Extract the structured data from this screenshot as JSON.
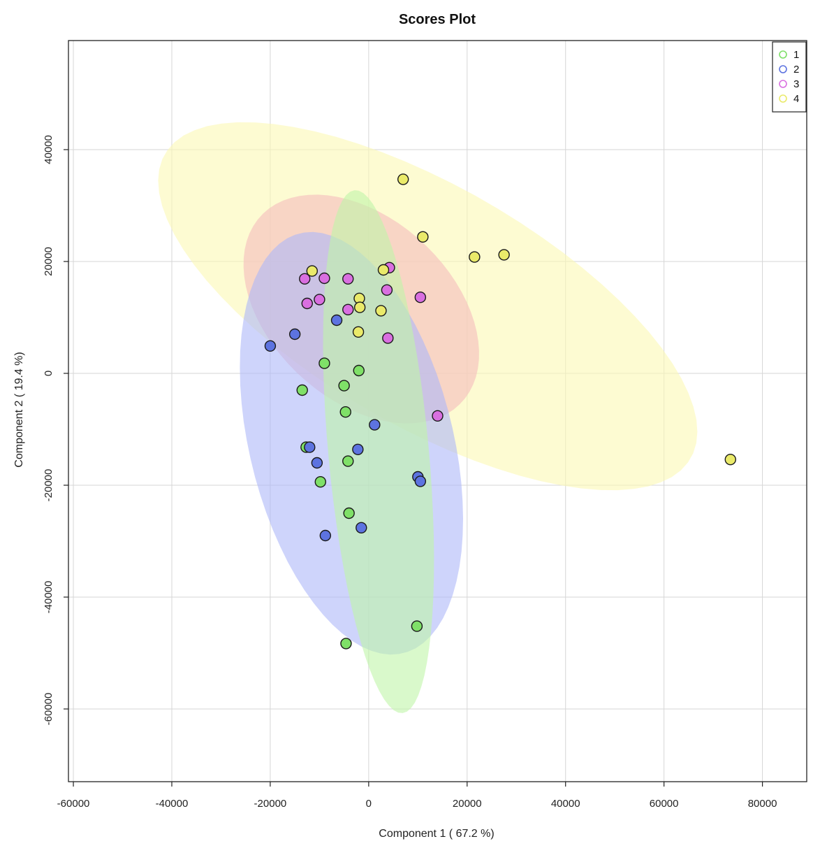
{
  "chart_data": {
    "type": "scatter",
    "title": "Scores Plot",
    "xlabel": "Component 1 ( 67.2 %)",
    "ylabel": "Component 2 ( 19.4 %)",
    "xlim": [
      -61000,
      89000
    ],
    "ylim": [
      -73000,
      59500
    ],
    "x_ticks": [
      -60000,
      -40000,
      -20000,
      0,
      20000,
      40000,
      60000,
      80000
    ],
    "x_tick_labels": [
      "-60000",
      "-40000",
      "-20000",
      "0",
      "20000",
      "40000",
      "60000",
      "80000"
    ],
    "y_ticks": [
      -60000,
      -40000,
      -20000,
      0,
      20000,
      40000
    ],
    "y_tick_labels": [
      "-60000",
      "-40000",
      "-20000",
      "0",
      "20000",
      "40000"
    ],
    "grid": true,
    "legend_position": "top-right",
    "legend": [
      "1",
      "2",
      "3",
      "4"
    ],
    "series": [
      {
        "name": "1",
        "color": "#7fe068",
        "ellipse_fill": "#bff5a8",
        "points": [
          [
            -9000,
            1800
          ],
          [
            -2000,
            500
          ],
          [
            -13500,
            -3000
          ],
          [
            -5000,
            -2200
          ],
          [
            -4700,
            -6900
          ],
          [
            -12700,
            -13200
          ],
          [
            -4200,
            -15700
          ],
          [
            -9800,
            -19400
          ],
          [
            -4000,
            -25000
          ],
          [
            9800,
            -45200
          ],
          [
            -4600,
            -48300
          ]
        ],
        "ellipse": {
          "cx": 2000,
          "cy": -14000,
          "rx": 47000,
          "ry": 10200,
          "angle": -84
        }
      },
      {
        "name": "2",
        "color": "#5d73e0",
        "ellipse_fill": "#aeb8f8",
        "points": [
          [
            -20000,
            4900
          ],
          [
            -15000,
            7000
          ],
          [
            -6500,
            9500
          ],
          [
            1200,
            -9200
          ],
          [
            -12000,
            -13200
          ],
          [
            -2200,
            -13600
          ],
          [
            -10500,
            -16000
          ],
          [
            10000,
            -18500
          ],
          [
            10500,
            -19300
          ],
          [
            -1500,
            -27600
          ],
          [
            -8800,
            -29000
          ]
        ],
        "ellipse": {
          "cx": -3500,
          "cy": -12500,
          "rx": 39000,
          "ry": 20500,
          "angle": -73
        }
      },
      {
        "name": "3",
        "color": "#d96fe0",
        "ellipse_fill": "#f5bcbc",
        "points": [
          [
            -13000,
            16900
          ],
          [
            -9000,
            17000
          ],
          [
            -4200,
            16900
          ],
          [
            4200,
            18900
          ],
          [
            3700,
            14900
          ],
          [
            -12500,
            12500
          ],
          [
            -10000,
            13200
          ],
          [
            -4200,
            11400
          ],
          [
            10500,
            13600
          ],
          [
            3900,
            6300
          ],
          [
            14000,
            -7600
          ]
        ],
        "ellipse": {
          "cx": -1500,
          "cy": 11500,
          "rx": 26500,
          "ry": 17000,
          "angle": -34
        }
      },
      {
        "name": "4",
        "color": "#eaea6a",
        "ellipse_fill": "#fbf9b4",
        "points": [
          [
            7000,
            34700
          ],
          [
            11000,
            24400
          ],
          [
            21500,
            20800
          ],
          [
            27500,
            21200
          ],
          [
            3000,
            18500
          ],
          [
            -11500,
            18300
          ],
          [
            -1900,
            13400
          ],
          [
            -1800,
            11800
          ],
          [
            2500,
            11200
          ],
          [
            -2100,
            7400
          ],
          [
            73500,
            -15400
          ]
        ],
        "ellipse": {
          "cx": 12000,
          "cy": 12000,
          "rx": 60000,
          "ry": 22000,
          "angle": -26
        }
      }
    ]
  }
}
